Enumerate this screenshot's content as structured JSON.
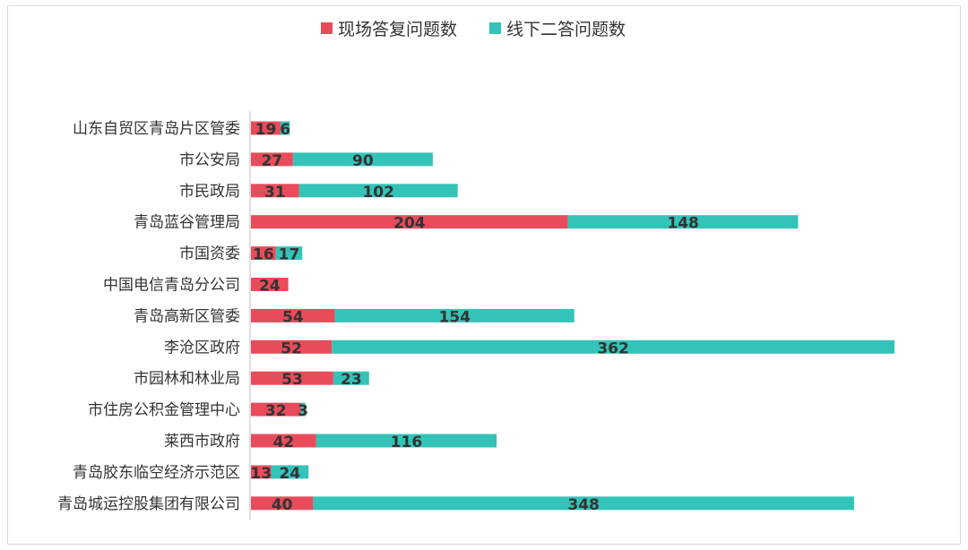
{
  "chart_data": {
    "type": "bar",
    "orientation": "horizontal",
    "stacked": true,
    "legend_position": "top",
    "grid": false,
    "categories": [
      "山东自贸区青岛片区管委",
      "市公安局",
      "市民政局",
      "青岛蓝谷管理局",
      "市国资委",
      "中国电信青岛分公司",
      "青岛高新区管委",
      "李沧区政府",
      "市园林和林业局",
      "市住房公积金管理中心",
      "莱西市政府",
      "青岛胶东临空经济示范区",
      "青岛城运控股集团有限公司"
    ],
    "series": [
      {
        "name": "现场答复问题数",
        "color": "#E84C5B",
        "values": [
          19,
          27,
          31,
          204,
          16,
          24,
          54,
          52,
          53,
          32,
          42,
          13,
          40
        ]
      },
      {
        "name": "线下二答问题数",
        "color": "#34C3B8",
        "values": [
          6,
          90,
          102,
          148,
          17,
          null,
          154,
          362,
          23,
          3,
          116,
          24,
          348
        ]
      }
    ],
    "xlim": [
      0,
      420
    ]
  }
}
